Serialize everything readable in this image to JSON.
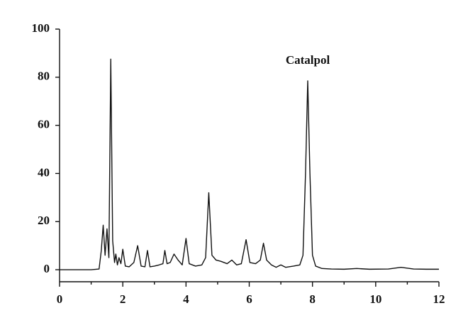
{
  "chart_data": {
    "type": "line",
    "annotation": "Catalpol",
    "x": [
      0,
      0.5,
      1.0,
      1.25,
      1.32,
      1.38,
      1.44,
      1.5,
      1.56,
      1.62,
      1.68,
      1.74,
      1.78,
      1.83,
      1.88,
      1.94,
      2.0,
      2.08,
      2.2,
      2.35,
      2.47,
      2.58,
      2.7,
      2.78,
      2.86,
      3.0,
      3.15,
      3.27,
      3.33,
      3.4,
      3.5,
      3.62,
      3.75,
      3.88,
      4.0,
      4.1,
      4.3,
      4.5,
      4.62,
      4.72,
      4.82,
      4.95,
      5.1,
      5.3,
      5.45,
      5.6,
      5.75,
      5.9,
      6.02,
      6.2,
      6.35,
      6.45,
      6.55,
      6.7,
      6.85,
      7.0,
      7.15,
      7.4,
      7.6,
      7.7,
      7.78,
      7.85,
      7.92,
      8.0,
      8.1,
      8.3,
      8.6,
      9.0,
      9.4,
      9.8,
      10.4,
      10.8,
      11.2,
      11.6,
      12.0
    ],
    "values": [
      0,
      0,
      0,
      0.3,
      8,
      18.5,
      6,
      17,
      5,
      87.5,
      12,
      3,
      6.5,
      2,
      5,
      2.5,
      8.5,
      1.5,
      1.2,
      3,
      10,
      1.5,
      1.2,
      8,
      1.2,
      1.5,
      2,
      2.5,
      8,
      2.5,
      3,
      6.5,
      4,
      2,
      13,
      2.5,
      1.5,
      2,
      5,
      32,
      6,
      4,
      3.5,
      2.5,
      4,
      2,
      2.5,
      12.5,
      3,
      2.5,
      4,
      11,
      4,
      2,
      1,
      2,
      1,
      1.5,
      2,
      6,
      40,
      78.5,
      40,
      6,
      1.5,
      0.5,
      0.3,
      0.2,
      0.5,
      0.2,
      0.3,
      1,
      0.3,
      0.2,
      0.2
    ],
    "color": "#111111",
    "xlim": [
      0,
      12
    ],
    "xticks": [
      0,
      2,
      4,
      6,
      8,
      10,
      12
    ],
    "ylim": [
      -5,
      100
    ],
    "yticks": [
      0,
      20,
      40,
      60,
      80,
      100
    ]
  }
}
